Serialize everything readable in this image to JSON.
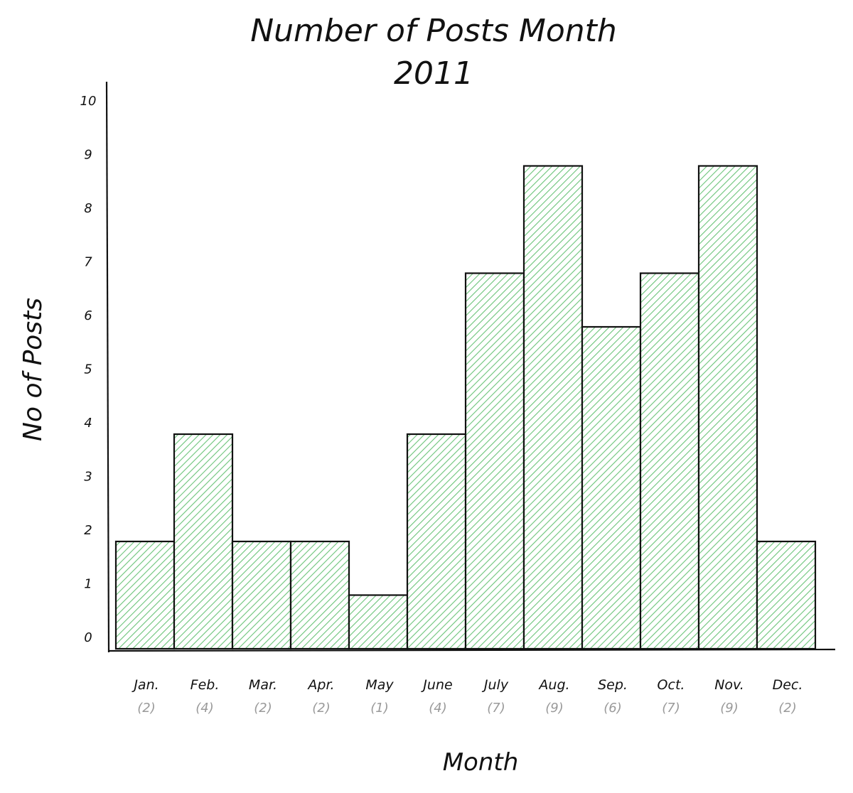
{
  "chart_data": {
    "type": "bar",
    "title": [
      "Number of Posts Month",
      "2011"
    ],
    "xlabel": "Month",
    "ylabel": "No of Posts",
    "ylim": [
      0,
      10
    ],
    "yticks": [
      "0",
      "1",
      "2",
      "3",
      "4",
      "5",
      "6",
      "7",
      "8",
      "9",
      "10"
    ],
    "categories": [
      "Jan.",
      "Feb.",
      "Mar.",
      "Apr.",
      "May",
      "June",
      "July",
      "Aug.",
      "Sep.",
      "Oct.",
      "Nov.",
      "Dec."
    ],
    "count_labels": [
      "(2)",
      "(4)",
      "(2)",
      "(2)",
      "(1)",
      "(4)",
      "(7)",
      "(9)",
      "(6)",
      "(7)",
      "(9)",
      "(2)"
    ],
    "values": [
      2,
      4,
      2,
      2,
      1,
      4,
      7,
      9,
      6,
      7,
      9,
      2
    ],
    "grid": false,
    "colors": {
      "bar_fill": "#6cc47a",
      "bar_stroke": "#111111",
      "count_text": "#9a9a9a"
    }
  }
}
